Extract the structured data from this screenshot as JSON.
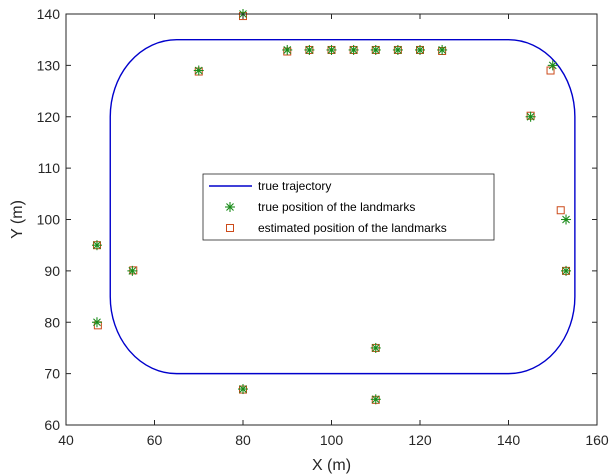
{
  "chart_data": {
    "type": "scatter",
    "title": "",
    "xlabel": "X (m)",
    "ylabel": "Y (m)",
    "xlim": [
      40,
      160
    ],
    "ylim": [
      60,
      140
    ],
    "xticks": [
      40,
      60,
      80,
      100,
      120,
      140,
      160
    ],
    "yticks": [
      60,
      70,
      80,
      90,
      100,
      110,
      120,
      130,
      140
    ],
    "grid": false,
    "legend_position": "center",
    "legend": [
      "true trajectory",
      "true position of the landmarks",
      "estimated position of the landmarks"
    ],
    "colors": {
      "trajectory": "#0000cc",
      "true_landmarks": "#1a8c1a",
      "estimated_landmarks": "#cc4a1a"
    },
    "trajectory": {
      "name": "true trajectory",
      "shape": "rounded-rectangle",
      "x_range": [
        50,
        155
      ],
      "y_range": [
        70,
        135
      ],
      "corner_radius": 15
    },
    "series": [
      {
        "name": "true position of the landmarks",
        "marker": "asterisk",
        "points": [
          [
            80,
            140
          ],
          [
            90,
            133
          ],
          [
            95,
            133
          ],
          [
            100,
            133
          ],
          [
            105,
            133
          ],
          [
            110,
            133
          ],
          [
            115,
            133
          ],
          [
            120,
            133
          ],
          [
            125,
            133
          ],
          [
            70,
            129
          ],
          [
            150,
            130
          ],
          [
            145,
            120
          ],
          [
            47,
            95
          ],
          [
            55,
            90
          ],
          [
            47,
            80
          ],
          [
            153,
            100
          ],
          [
            153,
            90
          ],
          [
            110,
            75
          ],
          [
            80,
            67
          ],
          [
            110,
            65
          ]
        ]
      },
      {
        "name": "estimated position of the landmarks",
        "marker": "square",
        "points": [
          [
            80,
            139.6
          ],
          [
            90,
            132.7
          ],
          [
            95,
            133
          ],
          [
            100,
            133
          ],
          [
            105,
            133
          ],
          [
            110,
            133
          ],
          [
            115,
            133
          ],
          [
            120,
            133
          ],
          [
            125,
            132.8
          ],
          [
            70,
            128.8
          ],
          [
            149.5,
            129
          ],
          [
            145,
            120.2
          ],
          [
            47,
            95
          ],
          [
            55.2,
            90.1
          ],
          [
            47.2,
            79.4
          ],
          [
            151.8,
            101.8
          ],
          [
            153,
            90
          ],
          [
            110,
            75
          ],
          [
            80,
            66.9
          ],
          [
            110,
            64.9
          ]
        ]
      }
    ]
  }
}
